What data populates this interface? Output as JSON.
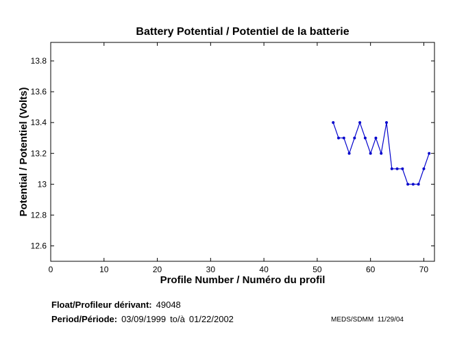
{
  "chart_data": {
    "type": "line",
    "title": "Battery Potential / Potentiel de la batterie",
    "xlabel": "Profile Number / Numéro du profil",
    "ylabel": "Potential / Potentiel (Volts)",
    "xlim": [
      0,
      72
    ],
    "ylim": [
      12.5,
      13.92
    ],
    "xticks": [
      0,
      10,
      20,
      30,
      40,
      50,
      60,
      70
    ],
    "xtick_labels": [
      "0",
      "10",
      "20",
      "30",
      "40",
      "50",
      "60",
      "70"
    ],
    "yticks": [
      12.6,
      12.8,
      13.0,
      13.2,
      13.4,
      13.6,
      13.8
    ],
    "ytick_labels": [
      "12.6",
      "12.8",
      "13",
      "13.2",
      "13.4",
      "13.6",
      "13.8"
    ],
    "grid": false,
    "series": [
      {
        "color": "#0000cc",
        "x": [
          53,
          54,
          55,
          56,
          57,
          58,
          59,
          60,
          61,
          62,
          63,
          64,
          65,
          66,
          67,
          68,
          69,
          70,
          71
        ],
        "y": [
          13.4,
          13.3,
          13.3,
          13.2,
          13.3,
          13.4,
          13.3,
          13.2,
          13.3,
          13.2,
          13.4,
          13.1,
          13.1,
          13.1,
          13.0,
          13.0,
          13.0,
          13.1,
          13.2
        ]
      }
    ]
  },
  "footer": {
    "float_label": "Float/Profileur dérivant:",
    "float_value": "49048",
    "period_label": "Period/Période:",
    "period_start": "03/09/1999",
    "period_to": "to/à",
    "period_end": "01/22/2002",
    "source": "MEDS/SDMM",
    "date": "11/29/04"
  }
}
